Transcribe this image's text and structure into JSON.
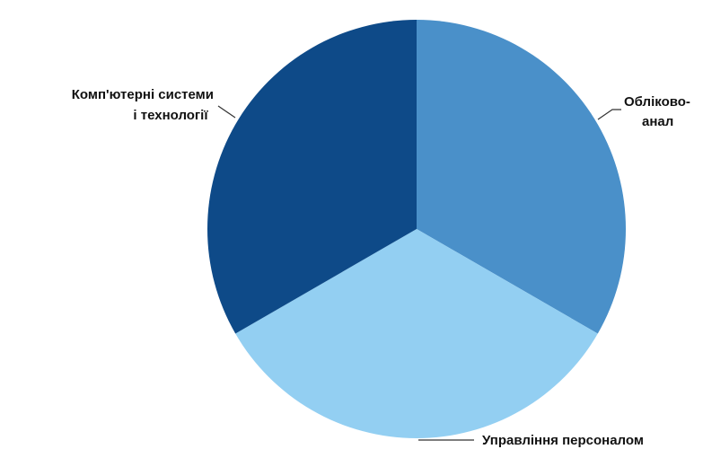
{
  "chart_data": {
    "type": "pie",
    "title": "",
    "slices": [
      {
        "label_lines": [
          "Обліково-",
          "анал"
        ],
        "value": 33.3,
        "color": "#4A90C9"
      },
      {
        "label_lines": [
          "Управління персоналом"
        ],
        "value": 33.3,
        "color": "#93CFF2"
      },
      {
        "label_lines": [
          "Комп'ютерні системи",
          "і технології"
        ],
        "value": 33.3,
        "color": "#0E4A88"
      }
    ],
    "start_angle_deg": 0,
    "direction": "clockwise",
    "legend": "none",
    "labels": "outside with leader lines"
  }
}
